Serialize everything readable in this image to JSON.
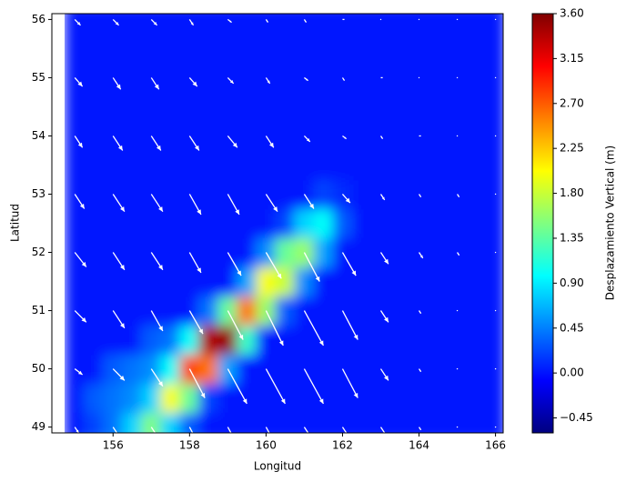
{
  "chart_data": {
    "type": "heatmap",
    "xlabel": "Longitud",
    "ylabel": "Latitud",
    "xlim": [
      154.4,
      166.2
    ],
    "ylim": [
      48.9,
      56.1
    ],
    "xticks": [
      156,
      158,
      160,
      162,
      164,
      166
    ],
    "yticks": [
      49,
      50,
      51,
      52,
      53,
      54,
      55,
      56
    ],
    "colormap": "jet",
    "x": [
      155,
      155.5,
      156,
      156.5,
      157,
      157.5,
      158,
      158.5,
      159,
      159.5,
      160,
      160.5,
      161,
      161.5,
      162,
      162.5,
      163,
      163.5,
      164,
      164.5,
      165,
      165.5,
      166
    ],
    "y": [
      49,
      49.5,
      50,
      50.5,
      51,
      51.5,
      52,
      52.5,
      53,
      53.5,
      54,
      54.5,
      55,
      55.5,
      56
    ],
    "z": [
      [
        0,
        0.2,
        0.4,
        0.8,
        1.5,
        0.8,
        0.3,
        0,
        0,
        0,
        0,
        0,
        0,
        0,
        0,
        0,
        0,
        0,
        0,
        0,
        0,
        0,
        0
      ],
      [
        0,
        0.3,
        0.4,
        0.5,
        0.8,
        2.0,
        1.4,
        0.2,
        0,
        0,
        0,
        0,
        0,
        0,
        0,
        0,
        0,
        0,
        0,
        0,
        0,
        0,
        0
      ],
      [
        0,
        0,
        0.3,
        0.4,
        0.5,
        1.0,
        2.8,
        2.6,
        0.6,
        0,
        0,
        0,
        0,
        0,
        0,
        0,
        0,
        0,
        0,
        0,
        0,
        0,
        0
      ],
      [
        0,
        0,
        0,
        0,
        0.3,
        0.4,
        1.0,
        3.4,
        3.5,
        1.2,
        0,
        0,
        0,
        0,
        0,
        0,
        0,
        0,
        0,
        0,
        0,
        0,
        0
      ],
      [
        0,
        0,
        0,
        0,
        0,
        0,
        0,
        0.4,
        1.4,
        2.6,
        1.6,
        0.3,
        0,
        0,
        0,
        0,
        0,
        0,
        0,
        0,
        0,
        0,
        0
      ],
      [
        0,
        0,
        0,
        0,
        0,
        0,
        0,
        0,
        0,
        0.6,
        2.0,
        1.8,
        0.5,
        0,
        0,
        0,
        0,
        0,
        0,
        0,
        0,
        0,
        0
      ],
      [
        0,
        0,
        0,
        0,
        0,
        0,
        0,
        0,
        0,
        0,
        0.5,
        1.4,
        1.6,
        0.6,
        0,
        0,
        0,
        0,
        0,
        0,
        0,
        0,
        0
      ],
      [
        0,
        0,
        0,
        0,
        0,
        0,
        0,
        0,
        0,
        0,
        0,
        0.2,
        0.8,
        1.0,
        0.3,
        0,
        0,
        0,
        0,
        0,
        0,
        0,
        0
      ],
      [
        0,
        0,
        0,
        0,
        0,
        0,
        0,
        0,
        0,
        0,
        0,
        0,
        0,
        0.2,
        0.1,
        0,
        0,
        0,
        0,
        0,
        0,
        0,
        0
      ],
      [
        0,
        0,
        0,
        0,
        0,
        0,
        0,
        0,
        0,
        0,
        0,
        0,
        0,
        0,
        0,
        0,
        0,
        0,
        0,
        0,
        0,
        0,
        0
      ],
      [
        0,
        0,
        0,
        0,
        0,
        0,
        0,
        0,
        0,
        0,
        0,
        0,
        0,
        0,
        0,
        0,
        0,
        0,
        0,
        0,
        0,
        0,
        0
      ],
      [
        0,
        0,
        0,
        0,
        0,
        0,
        0,
        0,
        0,
        0,
        0,
        0,
        0,
        0,
        0,
        0,
        0,
        0,
        0,
        0,
        0,
        0,
        0
      ],
      [
        0,
        0,
        0,
        0,
        0,
        0,
        0,
        0,
        0,
        0,
        0,
        0,
        0,
        0,
        0,
        0,
        0,
        0,
        0,
        0,
        0,
        0,
        0
      ],
      [
        0,
        0,
        0,
        0,
        0,
        0,
        0,
        0,
        0,
        0,
        0,
        0,
        0,
        0,
        0,
        0,
        0,
        0,
        0,
        0,
        0,
        0,
        0
      ],
      [
        0,
        0,
        0,
        0,
        0,
        0,
        0,
        0,
        0,
        0,
        0,
        0,
        0,
        0,
        0,
        0,
        0,
        0,
        0,
        0,
        0,
        0,
        0
      ]
    ],
    "quiver": {
      "color": "#ffffff",
      "x": [
        155,
        156,
        157,
        158,
        159,
        160,
        161,
        162,
        163,
        164,
        165,
        166
      ],
      "y": [
        49,
        50,
        51,
        52,
        53,
        54,
        55,
        56
      ],
      "u": [
        [
          0.1,
          0.2,
          0.3,
          0.4,
          0.5,
          0.5,
          0.5,
          0.4,
          0.2,
          0.05,
          0,
          0
        ],
        [
          0.2,
          0.3,
          0.3,
          0.4,
          0.5,
          0.5,
          0.5,
          0.4,
          0.2,
          0.05,
          0,
          0
        ],
        [
          0.3,
          0.3,
          0.3,
          0.35,
          0.4,
          0.45,
          0.5,
          0.4,
          0.2,
          0.05,
          0,
          0
        ],
        [
          0.3,
          0.3,
          0.3,
          0.3,
          0.35,
          0.4,
          0.4,
          0.35,
          0.2,
          0.1,
          0.05,
          0
        ],
        [
          0.25,
          0.3,
          0.3,
          0.3,
          0.3,
          0.3,
          0.25,
          0.2,
          0.1,
          0.05,
          0.05,
          0
        ],
        [
          0.2,
          0.25,
          0.25,
          0.25,
          0.25,
          0.2,
          0.15,
          0.1,
          0.05,
          0.05,
          0,
          0
        ],
        [
          0.2,
          0.2,
          0.2,
          0.2,
          0.15,
          0.1,
          0.1,
          0.05,
          0.05,
          0,
          0,
          0
        ],
        [
          0.15,
          0.15,
          0.15,
          0.1,
          0.1,
          0.05,
          0.05,
          0.05,
          0,
          0,
          0,
          0
        ]
      ],
      "v": [
        [
          -0.1,
          -0.2,
          -0.3,
          -0.5,
          -0.6,
          -0.6,
          -0.5,
          -0.4,
          -0.2,
          -0.05,
          0,
          0
        ],
        [
          -0.1,
          -0.2,
          -0.3,
          -0.5,
          -0.6,
          -0.6,
          -0.6,
          -0.5,
          -0.2,
          -0.05,
          0,
          0
        ],
        [
          -0.2,
          -0.3,
          -0.35,
          -0.4,
          -0.5,
          -0.6,
          -0.6,
          -0.5,
          -0.2,
          -0.05,
          0,
          0
        ],
        [
          -0.25,
          -0.3,
          -0.3,
          -0.35,
          -0.4,
          -0.45,
          -0.5,
          -0.4,
          -0.2,
          -0.1,
          -0.05,
          0
        ],
        [
          -0.25,
          -0.3,
          -0.3,
          -0.35,
          -0.35,
          -0.3,
          -0.25,
          -0.15,
          -0.1,
          -0.05,
          -0.05,
          0
        ],
        [
          -0.2,
          -0.25,
          -0.25,
          -0.25,
          -0.2,
          -0.2,
          -0.1,
          -0.05,
          -0.05,
          0,
          0,
          0
        ],
        [
          -0.15,
          -0.2,
          -0.2,
          -0.15,
          -0.1,
          -0.1,
          -0.05,
          -0.05,
          0,
          0,
          0,
          0
        ],
        [
          -0.1,
          -0.1,
          -0.1,
          -0.1,
          -0.05,
          -0.05,
          -0.05,
          0,
          0,
          0,
          0,
          0
        ]
      ]
    },
    "colorbar": {
      "label": "Desplazamiento Vertical (m)",
      "clim": [
        -0.6,
        3.6
      ],
      "ticks": [
        {
          "value": -0.45,
          "label": "−0.45"
        },
        {
          "value": 0,
          "label": "0.00"
        },
        0.45,
        {
          "value": 0.9,
          "label": "0.90"
        },
        1.35,
        {
          "value": 1.8,
          "label": "1.80"
        },
        2.25,
        {
          "value": 2.7,
          "label": "2.70"
        },
        3.15,
        {
          "value": 3.6,
          "label": "3.60"
        }
      ]
    }
  }
}
